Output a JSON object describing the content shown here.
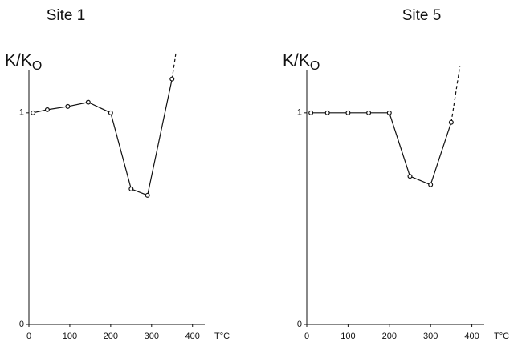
{
  "chart_data": [
    {
      "type": "line",
      "title": "Site 1",
      "ylabel": "K/K",
      "ylabel_sub": "O",
      "xlabel": "T°C",
      "x": [
        10,
        45,
        95,
        145,
        200,
        250,
        290,
        350
      ],
      "series": [
        {
          "color": "#111111",
          "values": [
            1.0,
            1.015,
            1.03,
            1.05,
            1.0,
            0.64,
            0.61,
            1.16
          ]
        }
      ],
      "extension": {
        "x": [
          350,
          360
        ],
        "values": [
          1.16,
          1.29
        ],
        "style": "dashed"
      },
      "xlim": [
        0,
        430
      ],
      "ylim": [
        0,
        1.2
      ],
      "xticks": [
        0,
        100,
        200,
        300,
        400
      ],
      "yticks": [
        0,
        1
      ],
      "grid": false
    },
    {
      "type": "line",
      "title": "Site  5",
      "ylabel": "K/K",
      "ylabel_sub": "O",
      "xlabel": "T°C",
      "x": [
        10,
        50,
        100,
        150,
        200,
        250,
        300,
        350
      ],
      "series": [
        {
          "color": "#111111",
          "values": [
            1.0,
            1.0,
            1.0,
            1.0,
            1.0,
            0.7,
            0.66,
            0.955
          ]
        }
      ],
      "extension": {
        "x": [
          350,
          371
        ],
        "values": [
          0.955,
          1.22
        ],
        "style": "dashed"
      },
      "xlim": [
        0,
        430
      ],
      "ylim": [
        0,
        1.2
      ],
      "xticks": [
        0,
        100,
        200,
        300,
        400
      ],
      "yticks": [
        0,
        1
      ],
      "grid": false
    }
  ]
}
